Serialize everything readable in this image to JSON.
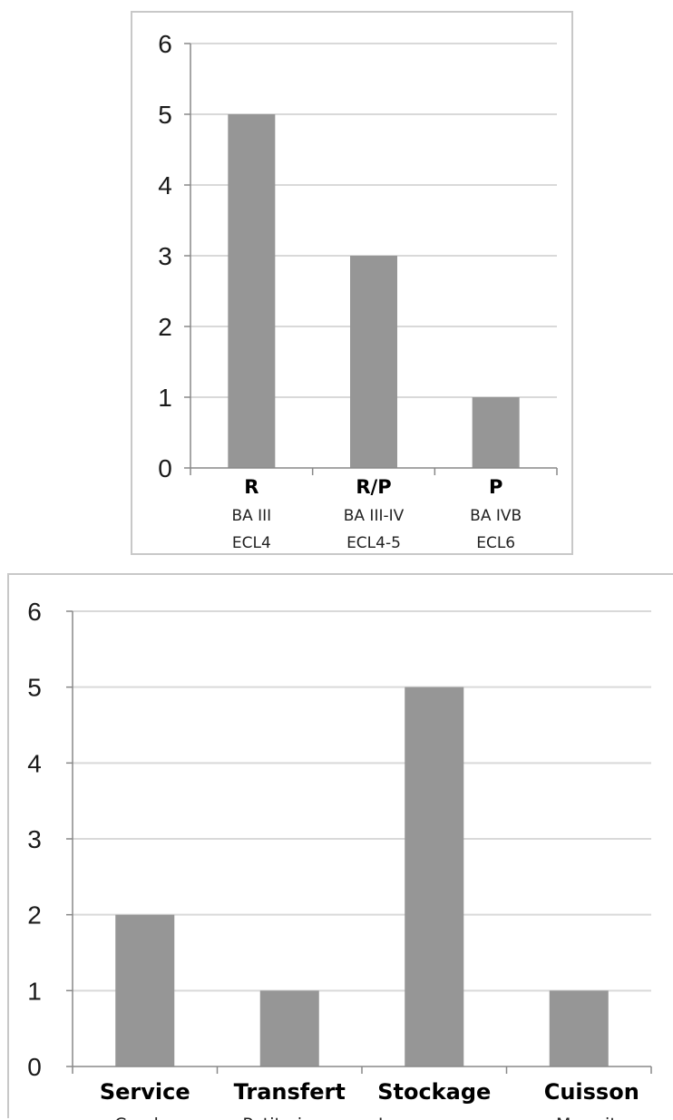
{
  "chart_data": [
    {
      "type": "bar",
      "categories": [
        "R",
        "R/P",
        "P"
      ],
      "sublabels": [
        [
          "BA III",
          "ECL4"
        ],
        [
          "BA III-IV",
          "ECL4-5"
        ],
        [
          "BA IVB",
          "ECL6"
        ]
      ],
      "values": [
        5,
        3,
        1
      ],
      "ylim": [
        0,
        6
      ],
      "yticks": [
        0,
        1,
        2,
        3,
        4,
        5,
        6
      ],
      "grid": true,
      "title": "",
      "xlabel": "",
      "ylabel": "",
      "bar_color": "#969696",
      "grid_color": "#d9d9d9"
    },
    {
      "type": "bar",
      "categories": [
        "Service",
        "Transfert",
        "Stockage",
        "Cuisson"
      ],
      "sublabels": [
        [
          "Cruche"
        ],
        [
          "Petite jarre"
        ],
        [
          "Jarre"
        ],
        [
          "Marmite"
        ]
      ],
      "values": [
        2,
        1,
        5,
        1
      ],
      "ylim": [
        0,
        6
      ],
      "yticks": [
        0,
        1,
        2,
        3,
        4,
        5,
        6
      ],
      "grid": true,
      "title": "",
      "xlabel": "",
      "ylabel": "",
      "bar_color": "#969696",
      "grid_color": "#d9d9d9"
    }
  ]
}
